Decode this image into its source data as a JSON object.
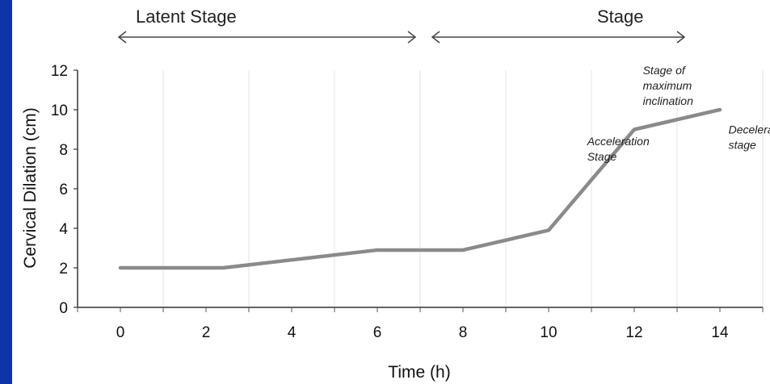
{
  "phases": {
    "latent_label": "Latent Stage",
    "active_label": "Stage"
  },
  "chart_data": {
    "type": "line",
    "xlabel": "Time (h)",
    "ylabel": "Cervical Dilation (cm)",
    "xlim": [
      -1,
      15
    ],
    "ylim": [
      0,
      12
    ],
    "x_ticks": [
      0,
      2,
      4,
      6,
      8,
      10,
      12,
      14
    ],
    "y_ticks": [
      0,
      2,
      4,
      6,
      8,
      10,
      12
    ],
    "grid": "vertical",
    "series": [
      {
        "color": "#8a8a8a",
        "x": [
          0,
          2.4,
          4,
          6,
          8,
          10,
          12,
          14
        ],
        "y": [
          2,
          2,
          2.4,
          2.9,
          2.9,
          3.9,
          9.0,
          10.0
        ]
      }
    ],
    "annotations": [
      {
        "text": [
          "Acceleration",
          "Stage"
        ],
        "x": 10.9,
        "y": 8.2
      },
      {
        "text": [
          "Stage of",
          "maximum",
          "inclination"
        ],
        "x": 12.2,
        "y": 11.8
      },
      {
        "text": [
          "Deceleration",
          "stage"
        ],
        "x": 14.2,
        "y": 8.8
      }
    ]
  }
}
